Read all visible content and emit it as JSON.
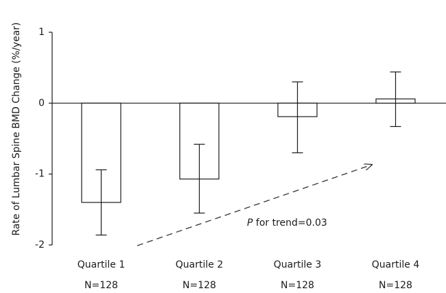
{
  "chart_data": {
    "type": "bar",
    "title": "",
    "xlabel": "",
    "ylabel": "Rate of Lumbar Spine BMD Change (%/year)",
    "ylim": [
      -2,
      1
    ],
    "yticks": [
      1,
      0,
      -1,
      -2
    ],
    "ytick_labels": [
      "1",
      "0",
      "-1",
      "-2"
    ],
    "grid": false,
    "legend": "none",
    "categories": [
      "Quartile 1",
      "Quartile 2",
      "Quartile 3",
      "Quartile 4"
    ],
    "sample_sizes": [
      "N=128",
      "N=128",
      "N=128",
      "N=128"
    ],
    "values": [
      -1.4,
      -1.07,
      -0.19,
      0.06
    ],
    "error_upper": [
      -0.94,
      -0.58,
      0.3,
      0.44
    ],
    "error_lower": [
      -1.86,
      -1.55,
      -0.7,
      -0.33
    ],
    "annotation": {
      "p_symbol": "P",
      "p_text": " for trend=0.03",
      "arrow": "dashed, rising from left to right"
    },
    "colors": {
      "bar_fill": "#ffffff",
      "bar_stroke": "#1a1a1a",
      "axis": "#1a1a1a",
      "arrow": "#333333"
    }
  }
}
